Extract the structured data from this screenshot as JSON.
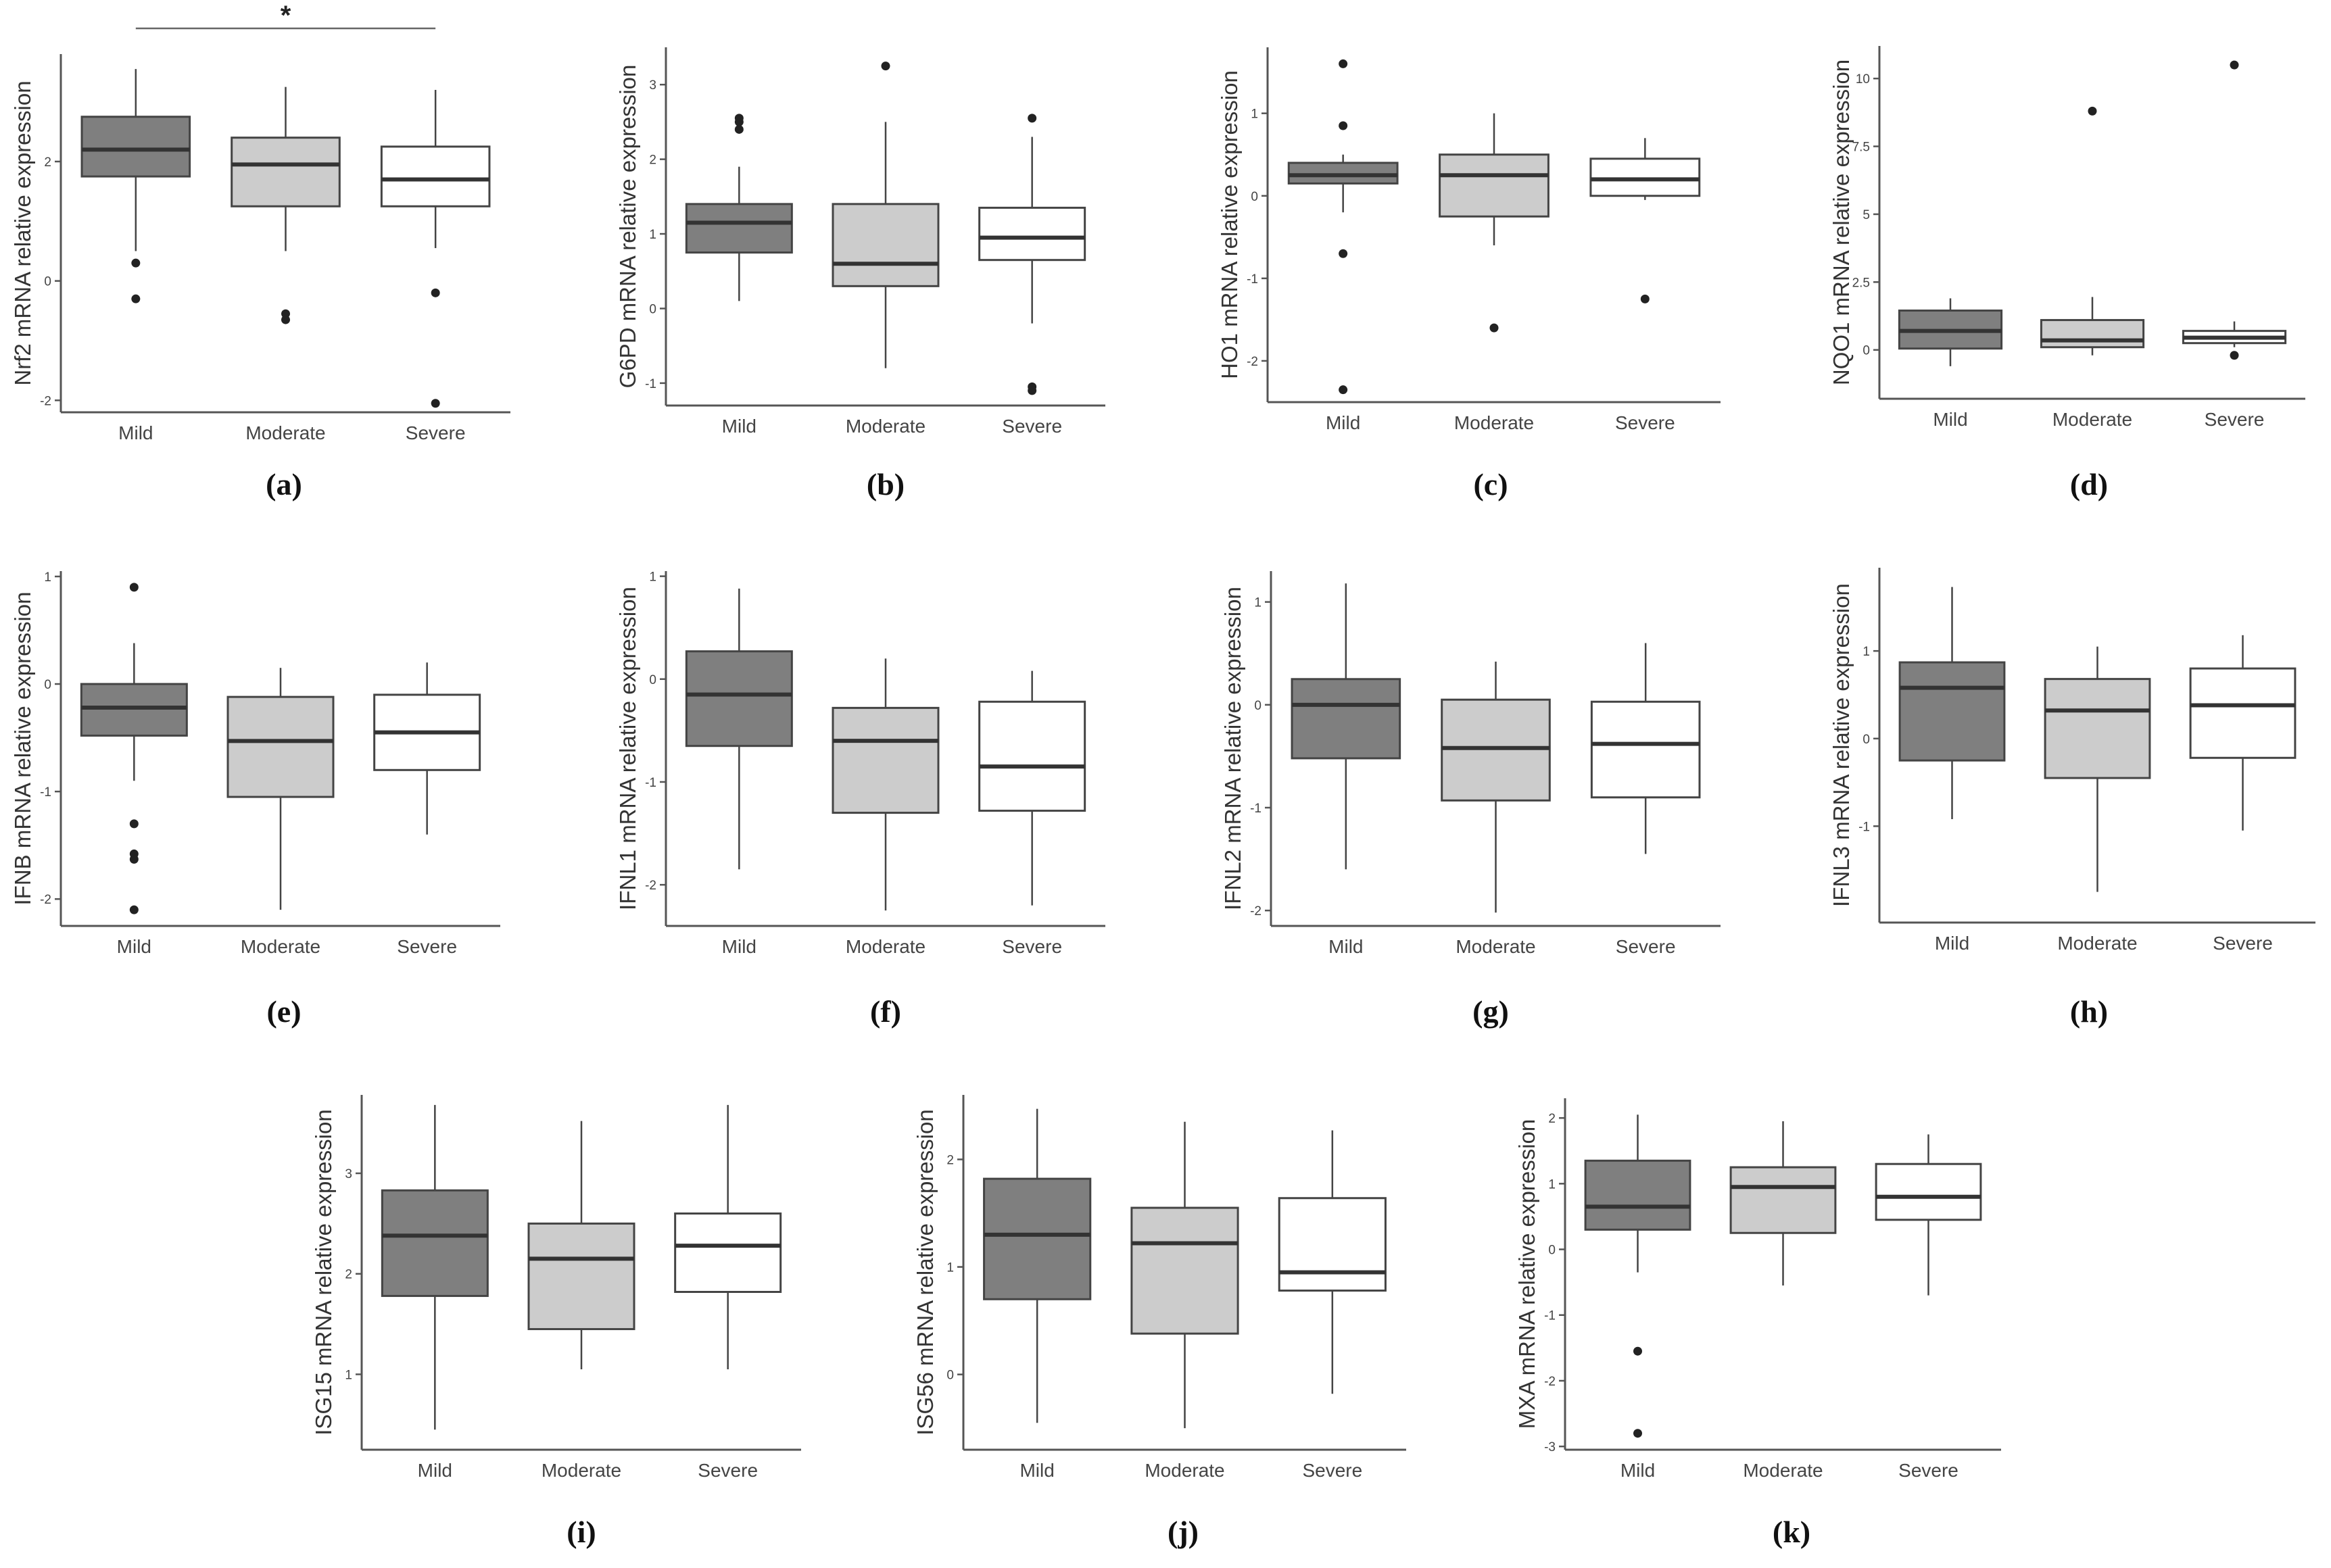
{
  "figure": {
    "categories": [
      "Mild",
      "Moderate",
      "Severe"
    ],
    "colors": {
      "Mild": "#7f7f7f",
      "Moderate": "#cccccc",
      "Severe": "#ffffff",
      "line": "#444444",
      "axis": "#555555"
    }
  },
  "chart_data": [
    {
      "panel": "(a)",
      "type": "box",
      "ylabel": "Nrf2 mRNA relative expression",
      "ylim": [
        -2.2,
        3.8
      ],
      "yticks": [
        -2,
        0,
        2
      ],
      "significance": {
        "symbol": "*",
        "from": "Mild",
        "to": "Severe"
      },
      "boxes": [
        {
          "category": "Mild",
          "q1": 1.75,
          "median": 2.2,
          "q3": 2.75,
          "whisker_low": 0.5,
          "whisker_high": 3.55,
          "outliers": [
            0.3,
            -0.3
          ]
        },
        {
          "category": "Moderate",
          "q1": 1.25,
          "median": 1.95,
          "q3": 2.4,
          "whisker_low": 0.5,
          "whisker_high": 3.25,
          "outliers": [
            -0.55,
            -0.65
          ]
        },
        {
          "category": "Severe",
          "q1": 1.25,
          "median": 1.7,
          "q3": 2.25,
          "whisker_low": 0.55,
          "whisker_high": 3.2,
          "outliers": [
            -0.2,
            -2.05
          ]
        }
      ]
    },
    {
      "panel": "(b)",
      "type": "box",
      "ylabel": "G6PD mRNA relative expression",
      "ylim": [
        -1.3,
        3.5
      ],
      "yticks": [
        -1,
        0,
        1,
        2,
        3
      ],
      "boxes": [
        {
          "category": "Mild",
          "q1": 0.75,
          "median": 1.15,
          "q3": 1.4,
          "whisker_low": 0.1,
          "whisker_high": 1.9,
          "outliers": [
            2.4,
            2.5,
            2.55
          ]
        },
        {
          "category": "Moderate",
          "q1": 0.3,
          "median": 0.6,
          "q3": 1.4,
          "whisker_low": -0.8,
          "whisker_high": 2.5,
          "outliers": [
            3.25
          ]
        },
        {
          "category": "Severe",
          "q1": 0.65,
          "median": 0.95,
          "q3": 1.35,
          "whisker_low": -0.2,
          "whisker_high": 2.3,
          "outliers": [
            2.55,
            -1.05,
            -1.1
          ]
        }
      ]
    },
    {
      "panel": "(c)",
      "type": "box",
      "ylabel": "HO1 mRNA relative expression",
      "ylim": [
        -2.5,
        1.8
      ],
      "yticks": [
        -2,
        -1,
        0,
        1
      ],
      "boxes": [
        {
          "category": "Mild",
          "q1": 0.15,
          "median": 0.25,
          "q3": 0.4,
          "whisker_low": -0.2,
          "whisker_high": 0.5,
          "outliers": [
            1.6,
            0.85,
            -0.7,
            -2.35
          ]
        },
        {
          "category": "Moderate",
          "q1": -0.25,
          "median": 0.25,
          "q3": 0.5,
          "whisker_low": -0.6,
          "whisker_high": 1.0,
          "outliers": [
            -1.6
          ]
        },
        {
          "category": "Severe",
          "q1": 0.0,
          "median": 0.2,
          "q3": 0.45,
          "whisker_low": -0.05,
          "whisker_high": 0.7,
          "outliers": [
            -1.25
          ]
        }
      ]
    },
    {
      "panel": "(d)",
      "type": "box",
      "ylabel": "NQO1 mRNA relative expression",
      "ylim": [
        -1.8,
        11.2
      ],
      "yticks": [
        0.0,
        2.5,
        5.0,
        7.5,
        10.0
      ],
      "boxes": [
        {
          "category": "Mild",
          "q1": 0.05,
          "median": 0.7,
          "q3": 1.45,
          "whisker_low": -0.6,
          "whisker_high": 1.9,
          "outliers": []
        },
        {
          "category": "Moderate",
          "q1": 0.1,
          "median": 0.35,
          "q3": 1.1,
          "whisker_low": -0.2,
          "whisker_high": 1.95,
          "outliers": [
            8.8
          ]
        },
        {
          "category": "Severe",
          "q1": 0.25,
          "median": 0.45,
          "q3": 0.7,
          "whisker_low": 0.1,
          "whisker_high": 1.05,
          "outliers": [
            10.5,
            -0.2
          ]
        }
      ]
    },
    {
      "panel": "(e)",
      "type": "box",
      "ylabel": "IFNB mRNA relative expression",
      "ylim": [
        -2.25,
        1.05
      ],
      "yticks": [
        -2,
        -1,
        0,
        1
      ],
      "boxes": [
        {
          "category": "Mild",
          "q1": -0.48,
          "median": -0.22,
          "q3": 0.0,
          "whisker_low": -0.9,
          "whisker_high": 0.38,
          "outliers": [
            0.9,
            -1.3,
            -1.58,
            -1.63,
            -2.1
          ]
        },
        {
          "category": "Moderate",
          "q1": -1.05,
          "median": -0.53,
          "q3": -0.12,
          "whisker_low": -2.1,
          "whisker_high": 0.15,
          "outliers": []
        },
        {
          "category": "Severe",
          "q1": -0.8,
          "median": -0.45,
          "q3": -0.1,
          "whisker_low": -1.4,
          "whisker_high": 0.2,
          "outliers": []
        }
      ]
    },
    {
      "panel": "(f)",
      "type": "box",
      "ylabel": "IFNL1 mRNA relative expression",
      "ylim": [
        -2.4,
        1.05
      ],
      "yticks": [
        -2,
        -1,
        0,
        1
      ],
      "boxes": [
        {
          "category": "Mild",
          "q1": -0.65,
          "median": -0.15,
          "q3": 0.27,
          "whisker_low": -1.85,
          "whisker_high": 0.88,
          "outliers": []
        },
        {
          "category": "Moderate",
          "q1": -1.3,
          "median": -0.6,
          "q3": -0.28,
          "whisker_low": -2.25,
          "whisker_high": 0.2,
          "outliers": []
        },
        {
          "category": "Severe",
          "q1": -1.28,
          "median": -0.85,
          "q3": -0.22,
          "whisker_low": -2.2,
          "whisker_high": 0.08,
          "outliers": []
        }
      ]
    },
    {
      "panel": "(g)",
      "type": "box",
      "ylabel": "IFNL2 mRNA relative expression",
      "ylim": [
        -2.15,
        1.3
      ],
      "yticks": [
        -2,
        -1,
        0,
        1
      ],
      "boxes": [
        {
          "category": "Mild",
          "q1": -0.52,
          "median": 0.0,
          "q3": 0.25,
          "whisker_low": -1.6,
          "whisker_high": 1.18,
          "outliers": []
        },
        {
          "category": "Moderate",
          "q1": -0.93,
          "median": -0.42,
          "q3": 0.05,
          "whisker_low": -2.02,
          "whisker_high": 0.42,
          "outliers": []
        },
        {
          "category": "Severe",
          "q1": -0.9,
          "median": -0.38,
          "q3": 0.03,
          "whisker_low": -1.45,
          "whisker_high": 0.6,
          "outliers": []
        }
      ]
    },
    {
      "panel": "(h)",
      "type": "box",
      "ylabel": "IFNL3 mRNA relative expression",
      "ylim": [
        -2.1,
        1.95
      ],
      "yticks": [
        -1,
        0,
        1
      ],
      "boxes": [
        {
          "category": "Mild",
          "q1": -0.25,
          "median": 0.58,
          "q3": 0.87,
          "whisker_low": -0.92,
          "whisker_high": 1.73,
          "outliers": []
        },
        {
          "category": "Moderate",
          "q1": -0.45,
          "median": 0.32,
          "q3": 0.68,
          "whisker_low": -1.75,
          "whisker_high": 1.05,
          "outliers": []
        },
        {
          "category": "Severe",
          "q1": -0.22,
          "median": 0.38,
          "q3": 0.8,
          "whisker_low": -1.05,
          "whisker_high": 1.18,
          "outliers": []
        }
      ]
    },
    {
      "panel": "(i)",
      "type": "box",
      "ylabel": "ISG15 mRNA relative expression",
      "ylim": [
        0.25,
        3.78
      ],
      "yticks": [
        1,
        2,
        3
      ],
      "boxes": [
        {
          "category": "Mild",
          "q1": 1.78,
          "median": 2.38,
          "q3": 2.83,
          "whisker_low": 0.45,
          "whisker_high": 3.68,
          "outliers": []
        },
        {
          "category": "Moderate",
          "q1": 1.45,
          "median": 2.15,
          "q3": 2.5,
          "whisker_low": 1.05,
          "whisker_high": 3.52,
          "outliers": []
        },
        {
          "category": "Severe",
          "q1": 1.82,
          "median": 2.28,
          "q3": 2.6,
          "whisker_low": 1.05,
          "whisker_high": 3.68,
          "outliers": []
        }
      ]
    },
    {
      "panel": "(j)",
      "type": "box",
      "ylabel": "ISG56 mRNA relative expression",
      "ylim": [
        -0.7,
        2.6
      ],
      "yticks": [
        0,
        1,
        2
      ],
      "boxes": [
        {
          "category": "Mild",
          "q1": 0.7,
          "median": 1.3,
          "q3": 1.82,
          "whisker_low": -0.45,
          "whisker_high": 2.47,
          "outliers": []
        },
        {
          "category": "Moderate",
          "q1": 0.38,
          "median": 1.22,
          "q3": 1.55,
          "whisker_low": -0.5,
          "whisker_high": 2.35,
          "outliers": []
        },
        {
          "category": "Severe",
          "q1": 0.78,
          "median": 0.95,
          "q3": 1.64,
          "whisker_low": -0.18,
          "whisker_high": 2.27,
          "outliers": []
        }
      ]
    },
    {
      "panel": "(k)",
      "type": "box",
      "ylabel": "MXA mRNA relative expression",
      "ylim": [
        -3.05,
        2.3
      ],
      "yticks": [
        -3,
        -2,
        -1,
        0,
        1,
        2
      ],
      "boxes": [
        {
          "category": "Mild",
          "q1": 0.3,
          "median": 0.65,
          "q3": 1.35,
          "whisker_low": -0.35,
          "whisker_high": 2.05,
          "outliers": [
            -1.55,
            -2.8
          ]
        },
        {
          "category": "Moderate",
          "q1": 0.25,
          "median": 0.95,
          "q3": 1.25,
          "whisker_low": -0.55,
          "whisker_high": 1.95,
          "outliers": []
        },
        {
          "category": "Severe",
          "q1": 0.45,
          "median": 0.8,
          "q3": 1.3,
          "whisker_low": -0.7,
          "whisker_high": 1.75,
          "outliers": []
        }
      ]
    }
  ]
}
